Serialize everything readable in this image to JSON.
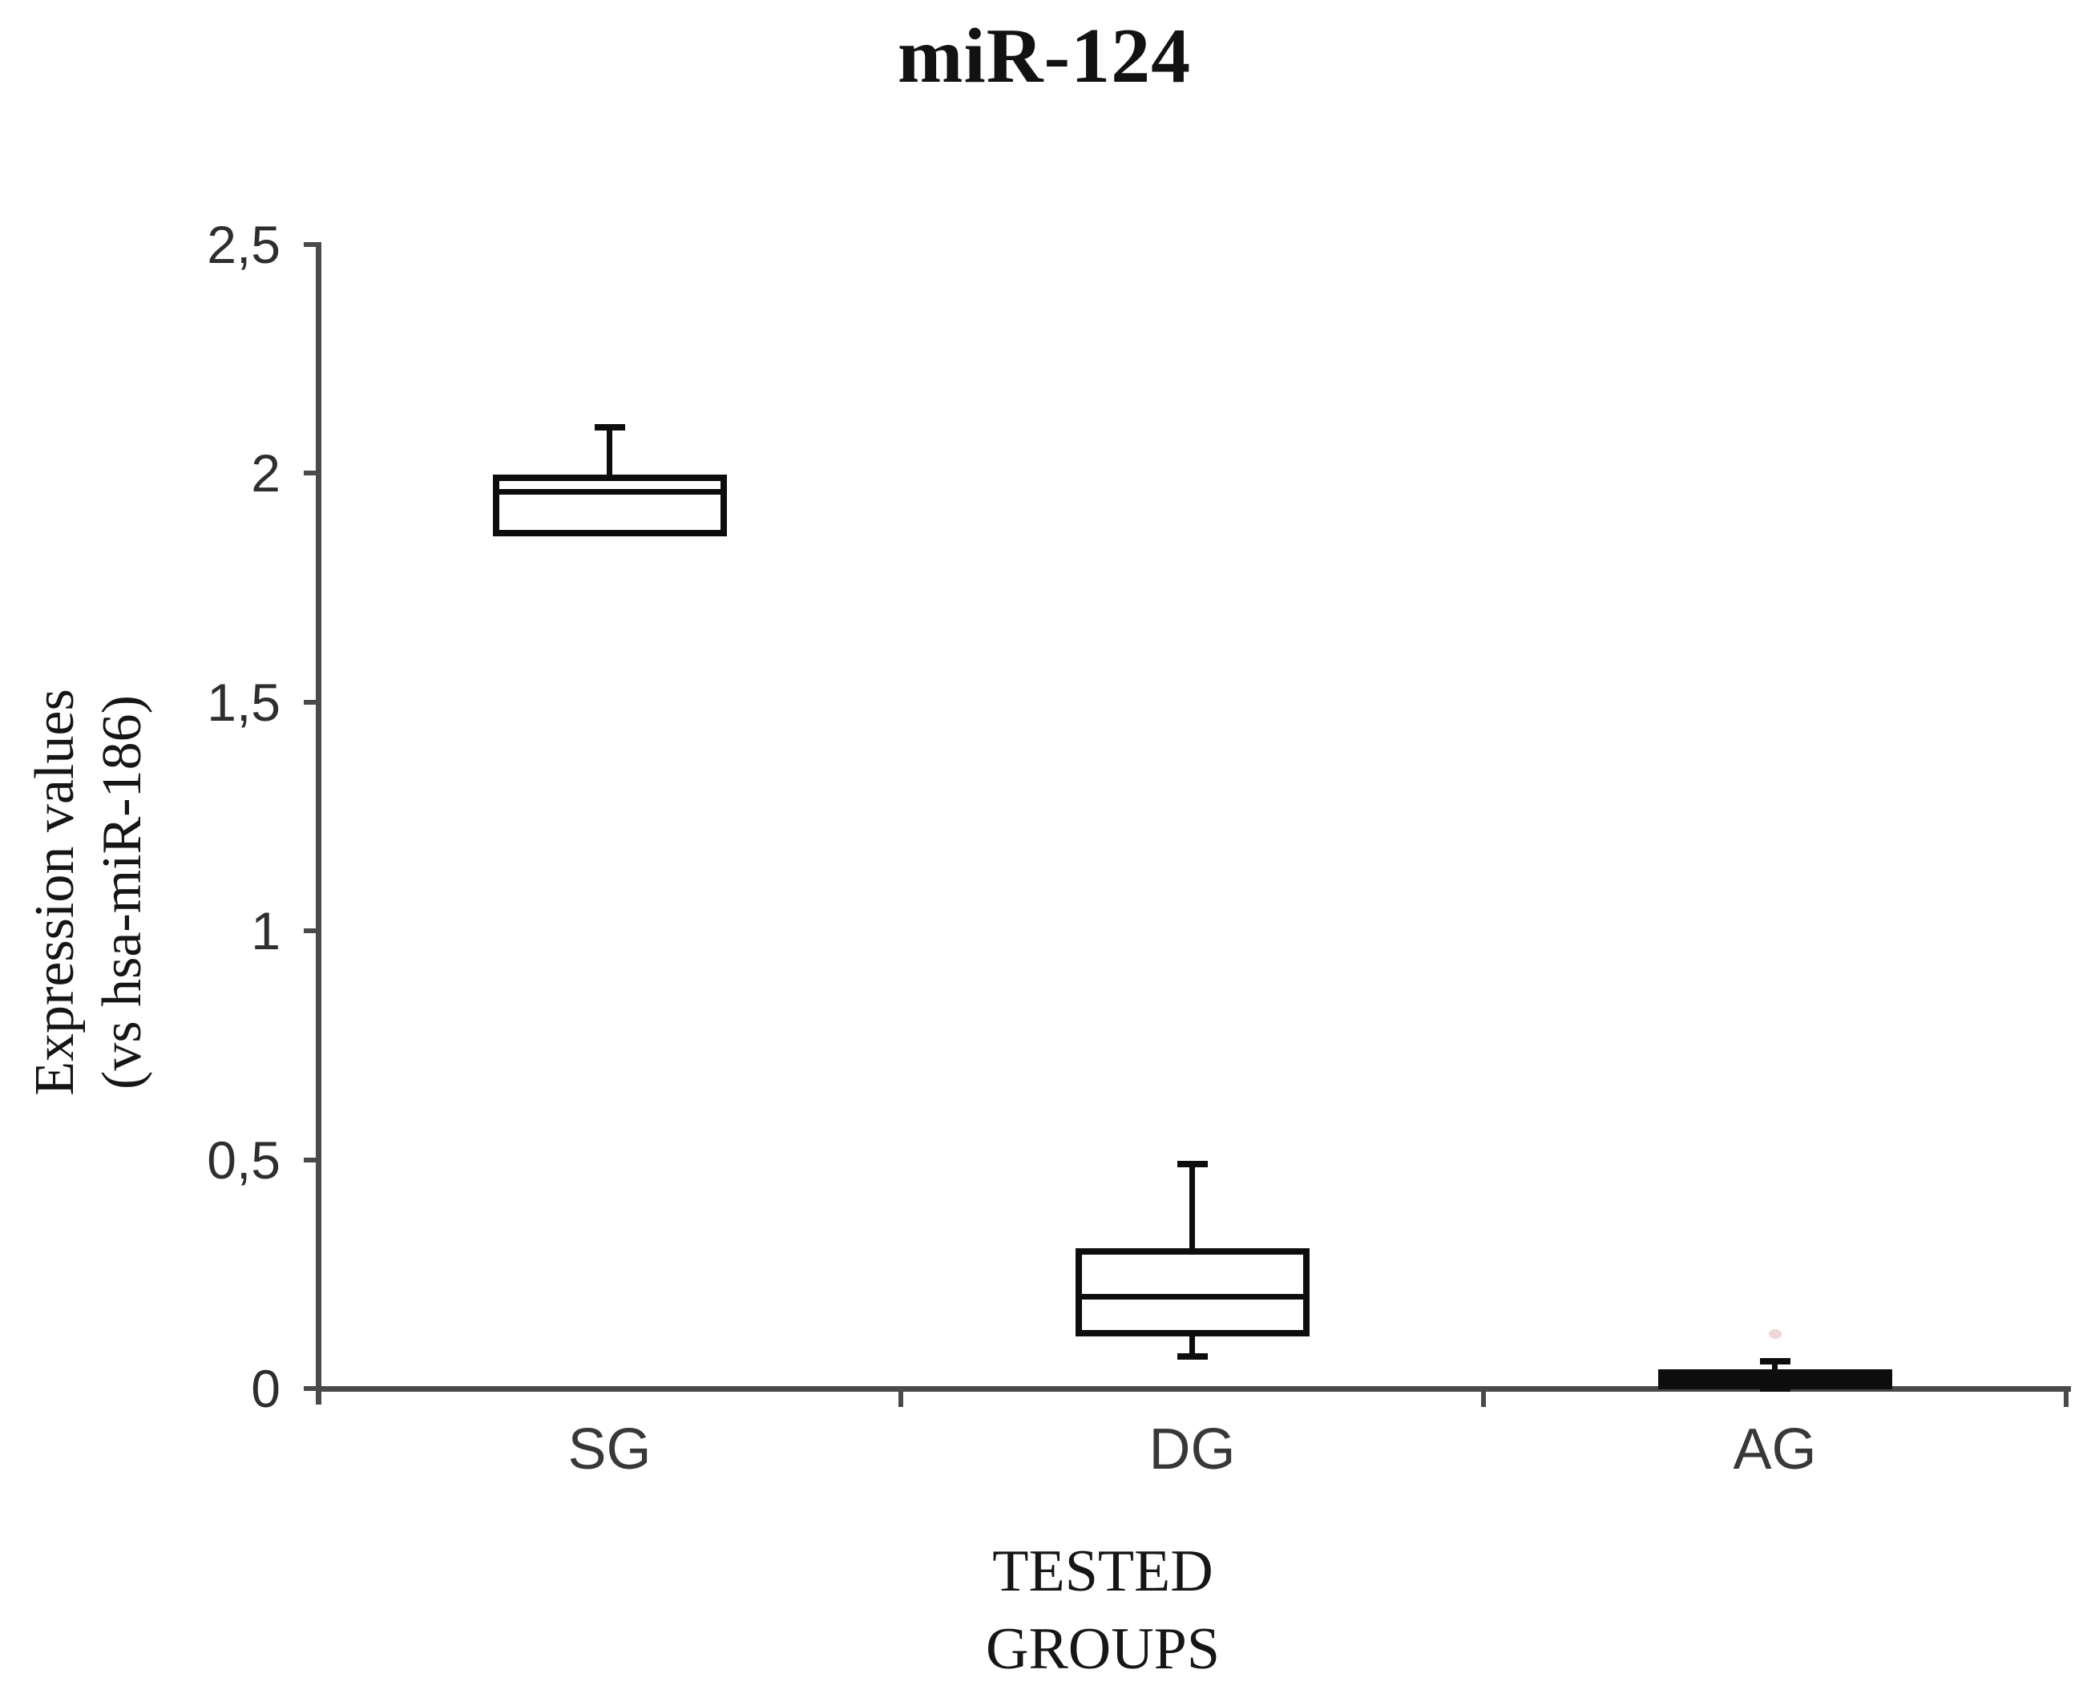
{
  "figure": {
    "background": "#ffffff"
  },
  "chart_data": {
    "type": "box",
    "title": "miR-124",
    "ylabel_lines": [
      "Expression values",
      "(vs hsa-miR-186)"
    ],
    "xlabel_lines": [
      "TESTED",
      "GROUPS"
    ],
    "categories": [
      "SG",
      "DG",
      "AG"
    ],
    "ylim": [
      0,
      2.5
    ],
    "yticks": [
      {
        "value": 2.5,
        "label": "2,5"
      },
      {
        "value": 2.0,
        "label": "2"
      },
      {
        "value": 1.5,
        "label": "1,5"
      },
      {
        "value": 1.0,
        "label": "1"
      },
      {
        "value": 0.5,
        "label": "0,5"
      },
      {
        "value": 0.0,
        "label": "0"
      }
    ],
    "grid": false,
    "legend": "none",
    "boxes": [
      {
        "category": "SG",
        "whisker_low": null,
        "q1": 1.87,
        "median": 1.96,
        "q3": 1.99,
        "whisker_high": 2.1,
        "filled": false,
        "outlier": null
      },
      {
        "category": "DG",
        "whisker_low": 0.07,
        "q1": 0.12,
        "median": 0.2,
        "q3": 0.3,
        "whisker_high": 0.49,
        "filled": false,
        "outlier": null
      },
      {
        "category": "AG",
        "whisker_low": 0.0,
        "q1": 0.005,
        "median": 0.02,
        "q3": 0.035,
        "whisker_high": 0.06,
        "filled": true,
        "outlier": {
          "y": 0.12,
          "color": "#f0d6d6"
        }
      }
    ],
    "colors": {
      "box_stroke": "#0d0d0d",
      "axis": "#4a4a4a",
      "tick_label": "#2e2e2e",
      "category_label": "#383838",
      "text": "#111111"
    }
  }
}
